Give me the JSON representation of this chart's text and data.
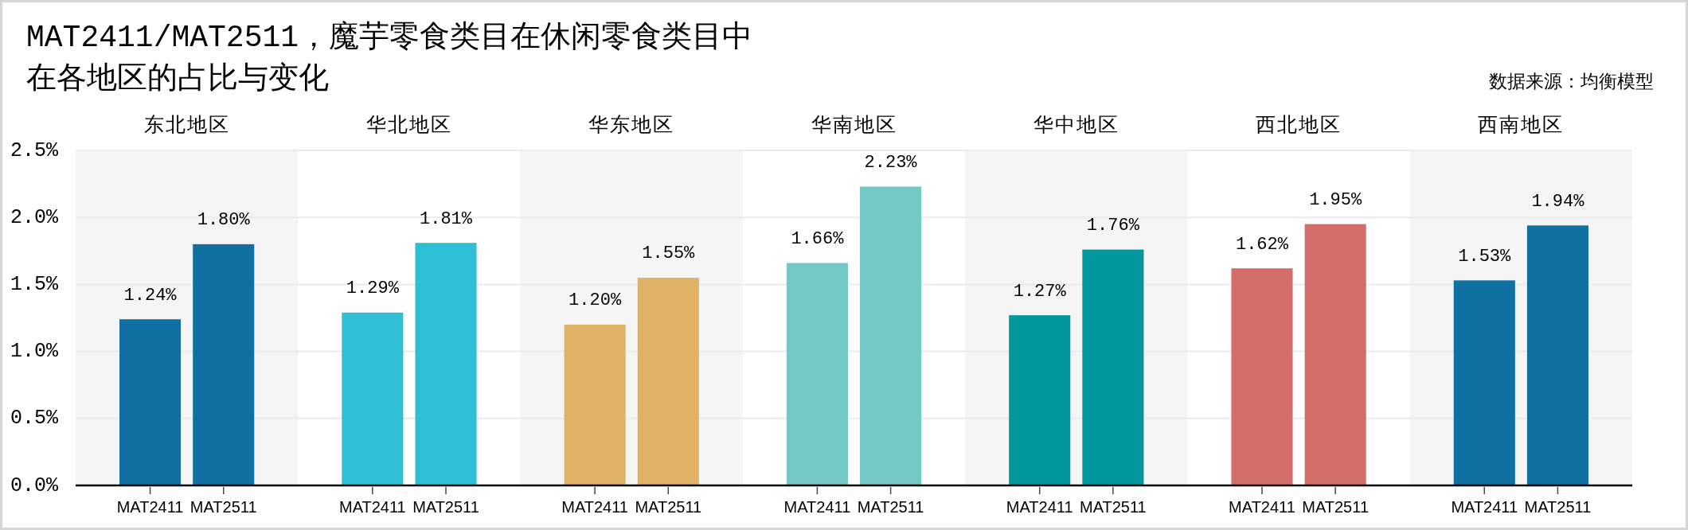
{
  "chart_data": {
    "type": "bar",
    "title": "MAT2411/MAT2511，魔芋零食类目在休闲零食类目中在各地区的占比与变化",
    "annotations": [
      "数据来源：均衡模型"
    ],
    "categories": [
      "东北地区",
      "华北地区",
      "华东地区",
      "华南地区",
      "华中地区",
      "西北地区",
      "西南地区"
    ],
    "series": [
      {
        "name": "MAT2411",
        "colors": [
          "#1170a2",
          "#2fbfd4",
          "#e0b266",
          "#72c9c5",
          "#00979d",
          "#d46e6b",
          "#1170a2"
        ],
        "values": [
          1.24,
          1.29,
          1.2,
          1.66,
          1.27,
          1.62,
          1.53
        ],
        "value_labels": [
          "1.24%",
          "1.29%",
          "1.20%",
          "1.66%",
          "1.27%",
          "1.62%",
          "1.53%"
        ]
      },
      {
        "name": "MAT2511",
        "colors": [
          "#1170a2",
          "#2fbfd4",
          "#e0b266",
          "#72c9c5",
          "#00979d",
          "#d46e6b",
          "#1170a2"
        ],
        "values": [
          1.8,
          1.81,
          1.55,
          2.23,
          1.76,
          1.95,
          1.94
        ],
        "value_labels": [
          "1.80%",
          "1.81%",
          "1.55%",
          "2.23%",
          "1.76%",
          "1.95%",
          "1.94%"
        ]
      }
    ],
    "ylim": [
      0,
      2.5
    ],
    "yticks": [
      {
        "value": 0,
        "label": "0.0%"
      },
      {
        "value": 0.5,
        "label": "0.5%"
      },
      {
        "value": 1,
        "label": "1.0%"
      },
      {
        "value": 1.5,
        "label": "1.5%"
      },
      {
        "value": 2,
        "label": "2.0%"
      },
      {
        "value": 2.5,
        "label": "2.5%"
      }
    ],
    "grid": "y"
  }
}
